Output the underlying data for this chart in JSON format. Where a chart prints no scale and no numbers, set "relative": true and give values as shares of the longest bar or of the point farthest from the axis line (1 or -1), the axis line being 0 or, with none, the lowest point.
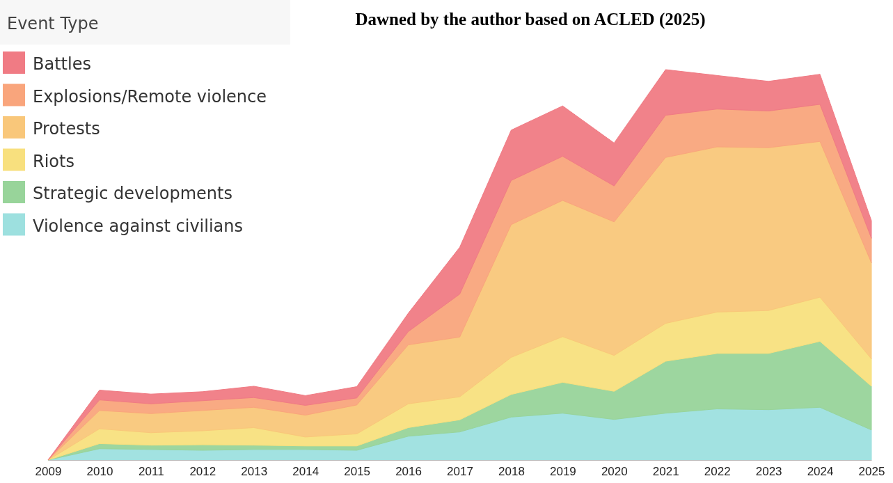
{
  "chart_data": {
    "type": "area",
    "title": "Dawned by the author based on ACLED (2025)",
    "legend_title": "Event Type",
    "legend": "top left",
    "stacked": true,
    "relative": true,
    "categories": [
      "2009",
      "2010",
      "2011",
      "2012",
      "2013",
      "2014",
      "2015",
      "2016",
      "2017",
      "2018",
      "2019",
      "2020",
      "2021",
      "2022",
      "2023",
      "2024",
      "2025"
    ],
    "series": [
      {
        "name": "Violence against civilians",
        "color": "#9de0df",
        "values": [
          0,
          0.029,
          0.027,
          0.025,
          0.027,
          0.027,
          0.025,
          0.061,
          0.072,
          0.11,
          0.12,
          0.104,
          0.12,
          0.131,
          0.129,
          0.135,
          0.077
        ]
      },
      {
        "name": "Strategic developments",
        "color": "#98d49a",
        "values": [
          0,
          0.013,
          0.011,
          0.014,
          0.011,
          0.009,
          0.011,
          0.022,
          0.031,
          0.058,
          0.079,
          0.072,
          0.133,
          0.142,
          0.144,
          0.169,
          0.112
        ]
      },
      {
        "name": "Riots",
        "color": "#f8e07e",
        "values": [
          0,
          0.038,
          0.032,
          0.036,
          0.045,
          0.023,
          0.031,
          0.061,
          0.059,
          0.095,
          0.117,
          0.092,
          0.097,
          0.106,
          0.11,
          0.113,
          0.07
        ]
      },
      {
        "name": "Protests",
        "color": "#f9c77a",
        "values": [
          0,
          0.047,
          0.049,
          0.052,
          0.052,
          0.056,
          0.074,
          0.151,
          0.153,
          0.34,
          0.349,
          0.342,
          0.425,
          0.423,
          0.417,
          0.399,
          0.246
        ]
      },
      {
        "name": "Explosions/Remote violence",
        "color": "#f9a57c",
        "values": [
          0,
          0.027,
          0.025,
          0.025,
          0.025,
          0.025,
          0.018,
          0.034,
          0.11,
          0.113,
          0.113,
          0.092,
          0.108,
          0.097,
          0.094,
          0.095,
          0.063
        ]
      },
      {
        "name": "Battles",
        "color": "#f07b84",
        "values": [
          0,
          0.025,
          0.025,
          0.023,
          0.029,
          0.025,
          0.029,
          0.047,
          0.12,
          0.129,
          0.129,
          0.11,
          0.117,
          0.086,
          0.076,
          0.077,
          0.045
        ]
      }
    ]
  }
}
